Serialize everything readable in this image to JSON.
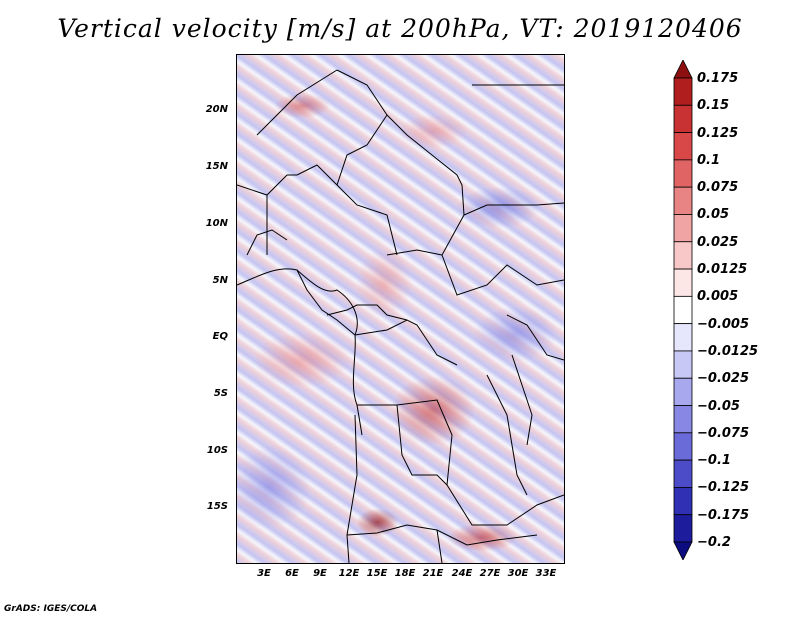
{
  "title": "Vertical velocity [m/s] at 200hPa, VT: 2019120406",
  "credit": "GrADS: IGES/COLA",
  "map": {
    "variable": "Vertical velocity",
    "units": "m/s",
    "level": "200hPa",
    "valid_time": "2019120406",
    "lat_labels": [
      "20N",
      "15N",
      "10N",
      "5N",
      "EQ",
      "5S",
      "10S",
      "15S"
    ],
    "lon_labels": [
      "3E",
      "6E",
      "9E",
      "12E",
      "15E",
      "18E",
      "21E",
      "24E",
      "27E",
      "30E",
      "33E"
    ]
  },
  "colorbar": {
    "labels": [
      "0.175",
      "0.15",
      "0.125",
      "0.1",
      "0.075",
      "0.05",
      "0.025",
      "0.0125",
      "0.005",
      "−0.005",
      "−0.0125",
      "−0.025",
      "−0.05",
      "−0.075",
      "−0.1",
      "−0.125",
      "−0.175",
      "−0.2"
    ],
    "colors": [
      "#8c1010",
      "#b01e1e",
      "#c83232",
      "#d84848",
      "#e06464",
      "#e88484",
      "#f0a4a4",
      "#f8c8c8",
      "#fce6e6",
      "#ffffff",
      "#e6e6fc",
      "#c8c8f6",
      "#a8a8ee",
      "#8888e4",
      "#6a6ad8",
      "#4c4cc8",
      "#3030b4",
      "#1c1c9c",
      "#0c0c80"
    ]
  }
}
